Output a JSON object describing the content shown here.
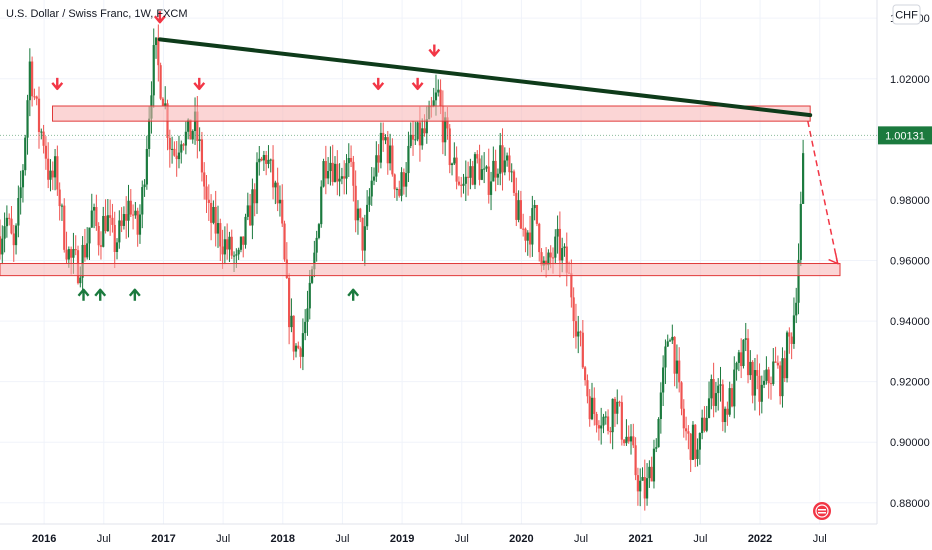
{
  "header": {
    "symbol_title": "U.S. Dollar / Swiss Franc, 1W, FXCM",
    "currency_button": "CHF"
  },
  "colors": {
    "up": "#26a69a",
    "up_dark": "#1b7a3e",
    "down": "#ef5350",
    "zone_fill": "#f7b3b3",
    "zone_stroke": "#e03a3a",
    "trendline": "#0e3b1a",
    "last_price_bg": "#1b7a3e",
    "arrow_down": "#f23645",
    "arrow_up": "#1b7a3e"
  },
  "chart_data": {
    "type": "candlestick",
    "symbol": "USD/CHF",
    "timeframe": "1W",
    "source": "FXCM",
    "y_axis": {
      "ticks": [
        "1.04000",
        "1.02000",
        "1.00000",
        "0.98000",
        "0.96000",
        "0.94000",
        "0.92000",
        "0.90000",
        "0.88000"
      ],
      "values": [
        1.04,
        1.02,
        1.0,
        0.98,
        0.96,
        0.94,
        0.92,
        0.9,
        0.88
      ],
      "range": [
        0.873,
        1.046
      ]
    },
    "x_axis": {
      "ticks": [
        {
          "label": "2016",
          "t": 2016.0,
          "bold": true
        },
        {
          "label": "Jul",
          "t": 2016.5,
          "bold": false
        },
        {
          "label": "2017",
          "t": 2017.0,
          "bold": true
        },
        {
          "label": "Jul",
          "t": 2017.5,
          "bold": false
        },
        {
          "label": "2018",
          "t": 2018.0,
          "bold": true
        },
        {
          "label": "Jul",
          "t": 2018.5,
          "bold": false
        },
        {
          "label": "2019",
          "t": 2019.0,
          "bold": true
        },
        {
          "label": "Jul",
          "t": 2019.5,
          "bold": false
        },
        {
          "label": "2020",
          "t": 2020.0,
          "bold": true
        },
        {
          "label": "Jul",
          "t": 2020.5,
          "bold": false
        },
        {
          "label": "2021",
          "t": 2021.0,
          "bold": true
        },
        {
          "label": "Jul",
          "t": 2021.5,
          "bold": false
        },
        {
          "label": "2022",
          "t": 2022.0,
          "bold": true
        },
        {
          "label": "Jul",
          "t": 2022.5,
          "bold": false
        }
      ],
      "range": [
        2015.63,
        2022.98
      ]
    },
    "last_price": {
      "label": "1.00131",
      "value": 1.00131
    },
    "close_path": [
      [
        2015.63,
        0.968
      ],
      [
        2015.68,
        0.975
      ],
      [
        2015.75,
        0.962
      ],
      [
        2015.82,
        0.99
      ],
      [
        2015.88,
        1.025
      ],
      [
        2015.95,
        1.005
      ],
      [
        2016.0,
        1.0
      ],
      [
        2016.05,
        0.985
      ],
      [
        2016.1,
        0.99
      ],
      [
        2016.16,
        0.97
      ],
      [
        2016.22,
        0.96
      ],
      [
        2016.28,
        0.958
      ],
      [
        2016.35,
        0.965
      ],
      [
        2016.4,
        0.975
      ],
      [
        2016.46,
        0.968
      ],
      [
        2016.52,
        0.975
      ],
      [
        2016.58,
        0.965
      ],
      [
        2016.65,
        0.97
      ],
      [
        2016.72,
        0.98
      ],
      [
        2016.78,
        0.968
      ],
      [
        2016.82,
        0.98
      ],
      [
        2016.86,
        1.0
      ],
      [
        2016.9,
        1.02
      ],
      [
        2016.93,
        1.03
      ],
      [
        2016.97,
        1.02
      ],
      [
        2017.0,
        1.015
      ],
      [
        2017.05,
        1.0
      ],
      [
        2017.1,
        0.995
      ],
      [
        2017.15,
        1.003
      ],
      [
        2017.2,
        1.0
      ],
      [
        2017.26,
        1.005
      ],
      [
        2017.31,
        0.995
      ],
      [
        2017.37,
        0.975
      ],
      [
        2017.45,
        0.97
      ],
      [
        2017.52,
        0.965
      ],
      [
        2017.58,
        0.962
      ],
      [
        2017.62,
        0.957
      ],
      [
        2017.66,
        0.965
      ],
      [
        2017.72,
        0.975
      ],
      [
        2017.8,
        0.99
      ],
      [
        2017.86,
        0.995
      ],
      [
        2017.92,
        0.985
      ],
      [
        2017.98,
        0.975
      ],
      [
        2018.03,
        0.95
      ],
      [
        2018.08,
        0.935
      ],
      [
        2018.12,
        0.93
      ],
      [
        2018.16,
        0.935
      ],
      [
        2018.22,
        0.945
      ],
      [
        2018.28,
        0.965
      ],
      [
        2018.33,
        0.99
      ],
      [
        2018.38,
        0.995
      ],
      [
        2018.44,
        0.99
      ],
      [
        2018.5,
        0.99
      ],
      [
        2018.56,
        0.99
      ],
      [
        2018.62,
        0.975
      ],
      [
        2018.68,
        0.965
      ],
      [
        2018.74,
        0.985
      ],
      [
        2018.8,
        0.995
      ],
      [
        2018.86,
        1.0
      ],
      [
        2018.92,
        0.99
      ],
      [
        2018.98,
        0.982
      ],
      [
        2019.03,
        0.992
      ],
      [
        2019.08,
        0.998
      ],
      [
        2019.14,
        1.0
      ],
      [
        2019.2,
        1.002
      ],
      [
        2019.26,
        1.01
      ],
      [
        2019.3,
        1.015
      ],
      [
        2019.34,
        1.005
      ],
      [
        2019.4,
        0.995
      ],
      [
        2019.46,
        0.988
      ],
      [
        2019.52,
        0.985
      ],
      [
        2019.58,
        0.99
      ],
      [
        2019.64,
        0.992
      ],
      [
        2019.7,
        0.985
      ],
      [
        2019.76,
        0.99
      ],
      [
        2019.82,
        0.995
      ],
      [
        2019.88,
        0.99
      ],
      [
        2019.94,
        0.98
      ],
      [
        2020.0,
        0.97
      ],
      [
        2020.06,
        0.97
      ],
      [
        2020.12,
        0.975
      ],
      [
        2020.16,
        0.965
      ],
      [
        2020.2,
        0.955
      ],
      [
        2020.24,
        0.96
      ],
      [
        2020.3,
        0.965
      ],
      [
        2020.36,
        0.96
      ],
      [
        2020.42,
        0.95
      ],
      [
        2020.46,
        0.94
      ],
      [
        2020.52,
        0.925
      ],
      [
        2020.56,
        0.915
      ],
      [
        2020.6,
        0.91
      ],
      [
        2020.66,
        0.91
      ],
      [
        2020.72,
        0.905
      ],
      [
        2020.78,
        0.915
      ],
      [
        2020.84,
        0.905
      ],
      [
        2020.9,
        0.9
      ],
      [
        2020.96,
        0.89
      ],
      [
        2021.0,
        0.885
      ],
      [
        2021.04,
        0.883
      ],
      [
        2021.08,
        0.89
      ],
      [
        2021.12,
        0.9
      ],
      [
        2021.16,
        0.91
      ],
      [
        2021.2,
        0.925
      ],
      [
        2021.24,
        0.94
      ],
      [
        2021.28,
        0.93
      ],
      [
        2021.32,
        0.915
      ],
      [
        2021.36,
        0.905
      ],
      [
        2021.4,
        0.9
      ],
      [
        2021.44,
        0.9
      ],
      [
        2021.48,
        0.895
      ],
      [
        2021.52,
        0.905
      ],
      [
        2021.58,
        0.915
      ],
      [
        2021.64,
        0.92
      ],
      [
        2021.7,
        0.91
      ],
      [
        2021.76,
        0.915
      ],
      [
        2021.82,
        0.925
      ],
      [
        2021.88,
        0.93
      ],
      [
        2021.94,
        0.92
      ],
      [
        2022.0,
        0.915
      ],
      [
        2022.06,
        0.92
      ],
      [
        2022.12,
        0.925
      ],
      [
        2022.18,
        0.92
      ],
      [
        2022.22,
        0.93
      ],
      [
        2022.26,
        0.935
      ],
      [
        2022.29,
        0.945
      ],
      [
        2022.32,
        0.96
      ],
      [
        2022.34,
        0.975
      ],
      [
        2022.36,
        0.99
      ],
      [
        2022.37,
        1.0
      ]
    ],
    "annotations": {
      "resistance_zone": {
        "x0": 2016.07,
        "x1": 2022.42,
        "y0": 1.006,
        "y1": 1.011
      },
      "support_zone": {
        "x0": 2015.63,
        "x1": 2022.67,
        "y0": 0.955,
        "y1": 0.959
      },
      "trendline": {
        "x0": 2016.97,
        "y0": 1.033,
        "x1": 2022.42,
        "y1": 1.008
      },
      "projection": {
        "x0": 2022.4,
        "y0": 1.006,
        "x1": 2022.65,
        "y1": 0.959
      },
      "arrows_down": [
        {
          "t": 2016.11,
          "v": 1.017
        },
        {
          "t": 2016.97,
          "v": 1.039
        },
        {
          "t": 2017.3,
          "v": 1.017
        },
        {
          "t": 2018.8,
          "v": 1.017
        },
        {
          "t": 2019.13,
          "v": 1.017
        },
        {
          "t": 2019.27,
          "v": 1.028
        }
      ],
      "arrows_up": [
        {
          "t": 2016.33,
          "v": 0.95
        },
        {
          "t": 2016.47,
          "v": 0.95
        },
        {
          "t": 2016.76,
          "v": 0.95
        },
        {
          "t": 2018.59,
          "v": 0.95
        }
      ]
    }
  }
}
